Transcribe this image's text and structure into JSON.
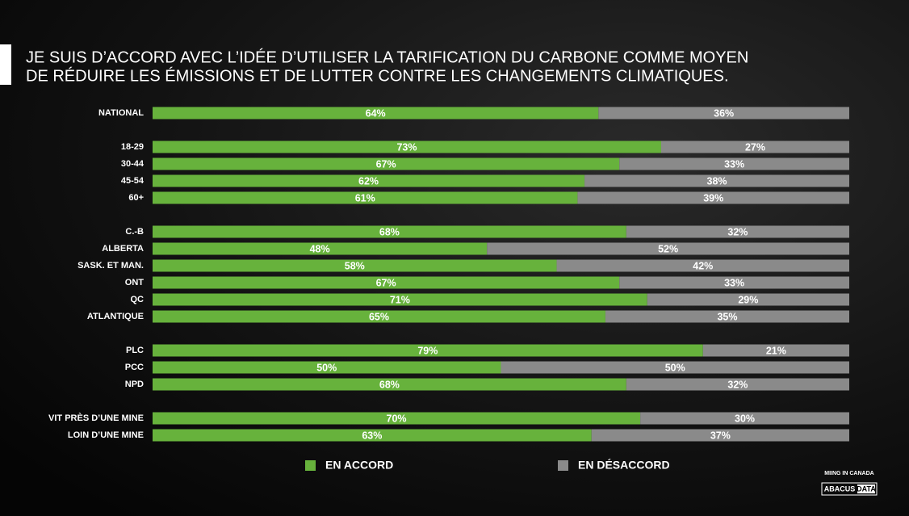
{
  "chart_data": {
    "type": "stacked_barh",
    "title": [
      "JE SUIS D’ACCORD AVEC L’IDÉE D’UTILISER LA TARIFICATION DU CARBONE COMME MOYEN",
      "DE RÉDUIRE LES ÉMISSIONS ET DE LUTTER CONTRE LES CHANGEMENTS CLIMATIQUES."
    ],
    "categories": [
      "NATIONAL",
      null,
      "18-29",
      "30-44",
      "45-54",
      "60+",
      null,
      "C.-B",
      "ALBERTA",
      "SASK. ET MAN.",
      "ONT",
      "QC",
      "ATLANTIQUE",
      null,
      "PLC",
      "PCC",
      "NPD",
      null,
      "VIT PRÈS D’UNE MINE",
      "LOIN D’UNE MINE"
    ],
    "series": [
      {
        "name": "EN ACCORD",
        "color": "#67b23c",
        "values": [
          64,
          null,
          73,
          67,
          62,
          61,
          null,
          68,
          48,
          58,
          67,
          71,
          65,
          null,
          79,
          50,
          68,
          null,
          70,
          63
        ],
        "value_labels": [
          "64%",
          null,
          "73%",
          "67%",
          "62%",
          "61%",
          null,
          "68%",
          "48%",
          "58%",
          "67%",
          "71%",
          "65%",
          null,
          "79%",
          "50%",
          "68%",
          null,
          "70%",
          "63%"
        ]
      },
      {
        "name": "EN DÉSACCORD",
        "color": "#8a8a8a",
        "values": [
          36,
          null,
          27,
          33,
          38,
          39,
          null,
          32,
          52,
          42,
          33,
          29,
          35,
          null,
          21,
          50,
          32,
          null,
          30,
          37
        ],
        "value_labels": [
          "36%",
          null,
          "27%",
          "33%",
          "38%",
          "39%",
          null,
          "32%",
          "52%",
          "42%",
          "33%",
          "29%",
          "35%",
          null,
          "21%",
          "50%",
          "32%",
          null,
          "30%",
          "37%"
        ]
      }
    ],
    "xlim": [
      0,
      100
    ],
    "legend": "bottom",
    "source": "MIING IN CANADA",
    "logo": [
      "ABACUS",
      "DATA"
    ]
  }
}
